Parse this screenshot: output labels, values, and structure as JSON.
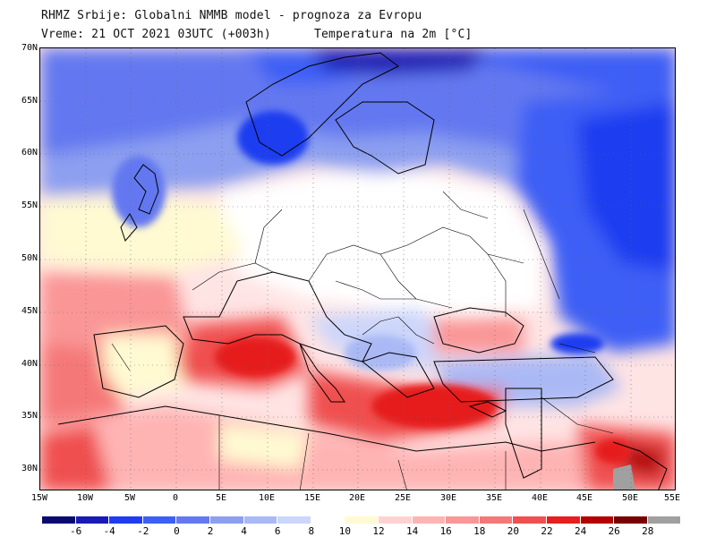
{
  "header": {
    "line1": "RHMZ Srbije: Globalni NMMB model - prognoza za Evropu",
    "line2_left": "Vreme: 21 OCT 2021 03UTC (+003h)",
    "line2_right": "Temperatura na 2m [°C]"
  },
  "map": {
    "lat_labels": [
      "70N",
      "65N",
      "60N",
      "55N",
      "50N",
      "45N",
      "40N",
      "35N",
      "30N"
    ],
    "lon_labels": [
      "15W",
      "10W",
      "5W",
      "0",
      "5E",
      "10E",
      "15E",
      "20E",
      "25E",
      "30E",
      "35E",
      "40E",
      "45E",
      "50E",
      "55E"
    ],
    "lat_range": [
      28,
      70
    ],
    "lon_range": [
      -15,
      55
    ],
    "variable": "2m temperature"
  },
  "colorbar": {
    "labels": [
      "-6",
      "-4",
      "-2",
      "0",
      "2",
      "4",
      "6",
      "8",
      "10",
      "12",
      "14",
      "16",
      "18",
      "20",
      "22",
      "24",
      "26",
      "28"
    ],
    "colors": [
      "#0a0a6e",
      "#1a1ab4",
      "#1f3cf0",
      "#3c5ff5",
      "#6478f0",
      "#8c9ff0",
      "#aab9f5",
      "#ccd6fa",
      "#ffffff",
      "#fffad2",
      "#ffd2d2",
      "#ffb4b4",
      "#fa9696",
      "#f57878",
      "#f05050",
      "#e61e1e",
      "#b40000",
      "#780000",
      "#a0a0a0"
    ]
  }
}
